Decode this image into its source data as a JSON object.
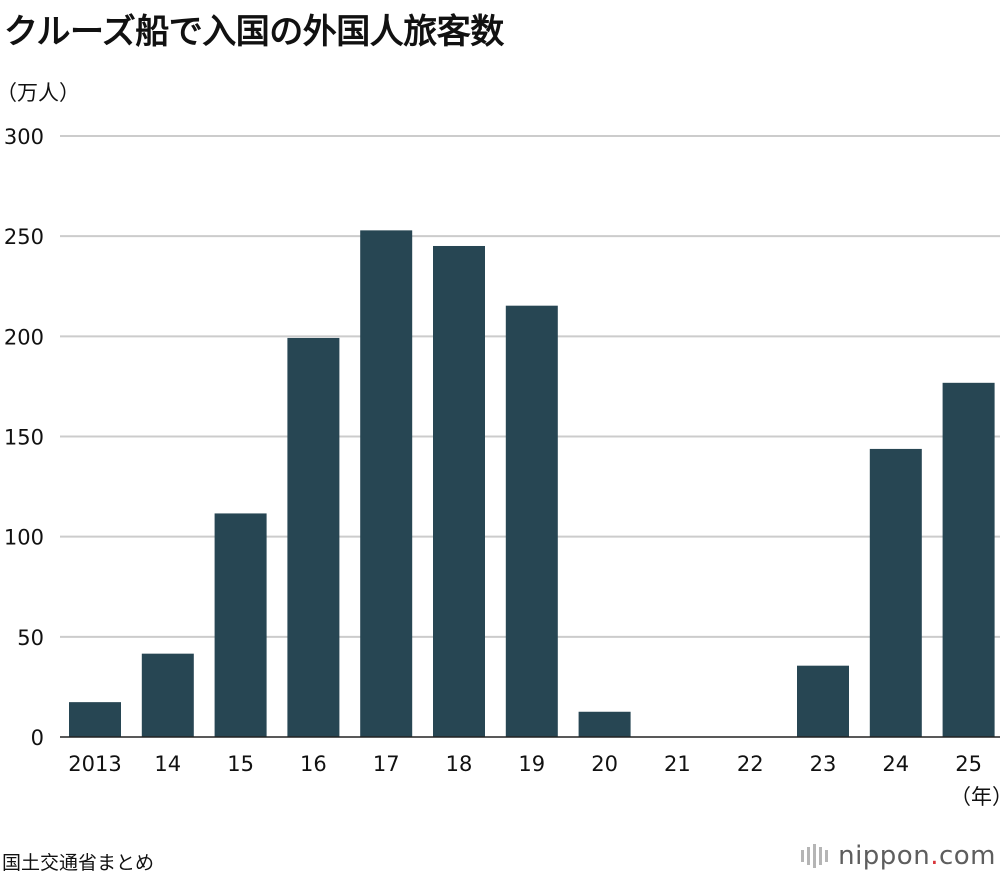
{
  "chart_data": {
    "type": "bar",
    "title": "クルーズ船で入国の外国人旅客数",
    "ylabel": "（万人）",
    "xlabel": "（年）",
    "categories": [
      "2013",
      "14",
      "15",
      "16",
      "17",
      "18",
      "19",
      "20",
      "21",
      "22",
      "23",
      "24",
      "25"
    ],
    "values": [
      17.4,
      41.6,
      111.6,
      199.2,
      252.9,
      245.1,
      215.3,
      12.6,
      0,
      0,
      35.6,
      143.8,
      176.8
    ],
    "ylim": [
      0,
      300
    ],
    "yticks": [
      "0",
      "50",
      "100",
      "150",
      "200",
      "250",
      "300"
    ],
    "grid": true,
    "colors": {
      "bar": "#274653",
      "grid": "#cccccc",
      "axis": "#222222"
    }
  },
  "footer": {
    "source": "国土交通省まとめ",
    "brand_name": "nippon",
    "brand_dot": ".",
    "brand_suffix": "com"
  }
}
